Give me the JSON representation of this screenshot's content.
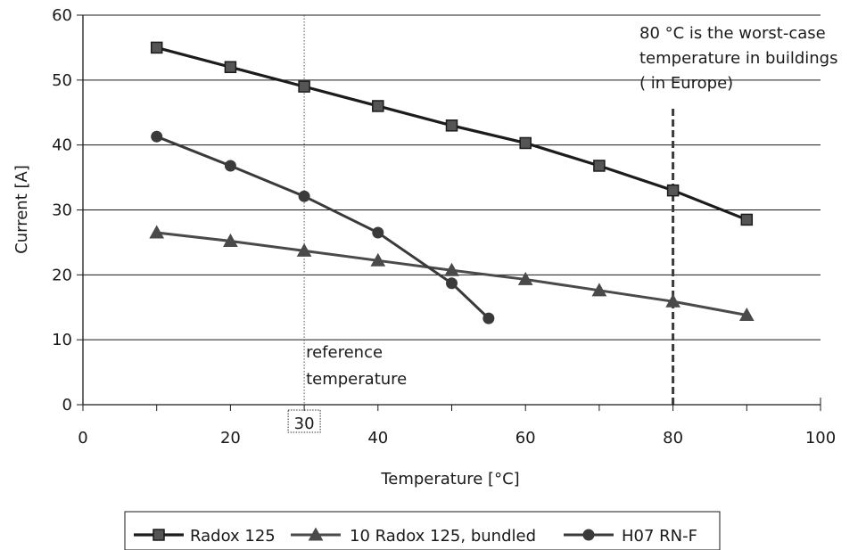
{
  "chart_data": {
    "type": "line",
    "xlabel": "Temperature [°C]",
    "ylabel": "Current [A]",
    "xlim": [
      0,
      100
    ],
    "ylim": [
      0,
      60
    ],
    "xticks": [
      "0",
      "20",
      "40",
      "60",
      "80",
      "100"
    ],
    "yticks": [
      "0",
      "10",
      "20",
      "30",
      "40",
      "50",
      "60"
    ],
    "grid": "horizontal",
    "legend_position": "bottom",
    "series": [
      {
        "name": "Radox 125",
        "marker": "square",
        "color": "#1c1c1c",
        "x": [
          10,
          20,
          30,
          40,
          50,
          60,
          70,
          80,
          90
        ],
        "y": [
          55,
          52,
          49,
          46,
          43,
          40.3,
          36.8,
          33,
          28.5
        ]
      },
      {
        "name": "10 Radox 125, bundled",
        "marker": "triangle",
        "color": "#4a4a4a",
        "x": [
          10,
          20,
          30,
          40,
          50,
          60,
          70,
          80,
          90
        ],
        "y": [
          26.5,
          25.2,
          23.7,
          22.2,
          20.7,
          19.3,
          17.6,
          15.9,
          13.8
        ]
      },
      {
        "name": "H07 RN-F",
        "marker": "circle",
        "color": "#3a3a3a",
        "x": [
          10,
          20,
          30,
          40,
          50,
          55
        ],
        "y": [
          41.3,
          36.8,
          32.1,
          26.5,
          18.7,
          13.3
        ]
      }
    ],
    "annotations": [
      {
        "id": "reference",
        "x": 30,
        "text_lines": [
          "reference",
          "temperature"
        ],
        "highlight_tick": "30"
      },
      {
        "id": "worst_case",
        "x": 80,
        "text_lines": [
          "80 °C is the worst-case",
          "temperature in buildings",
          "( in Europe)"
        ]
      }
    ]
  }
}
